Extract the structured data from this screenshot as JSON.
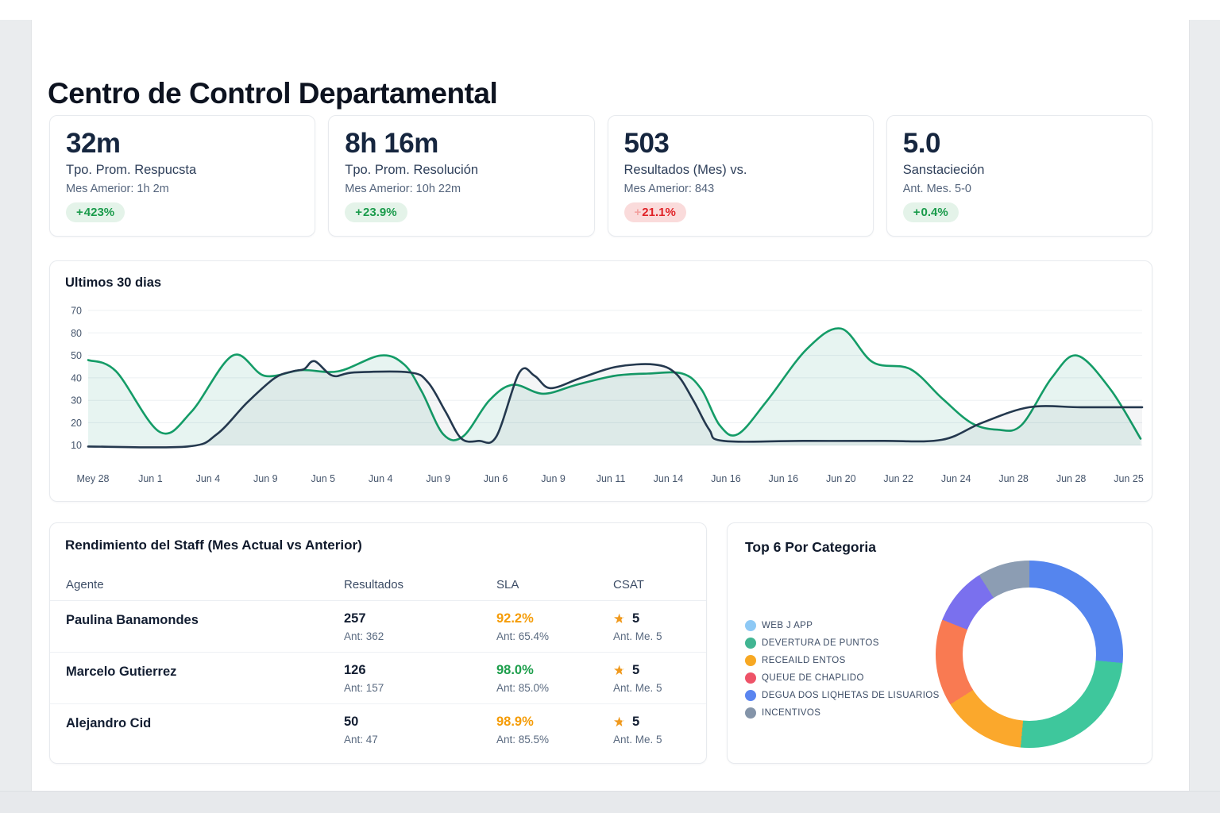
{
  "page": {
    "title": "Centro de Control Departamental"
  },
  "kpis": [
    {
      "value": "32m",
      "label": "Tpo. Prom. Respucsta",
      "sub": "Mes Amerior: 1h 2m",
      "badge_sign": "+",
      "badge_value": "423%",
      "badge_bg": "#E4F3E9",
      "badge_color": "#1A9B4B",
      "badge_sign_color": "#1A9B4B"
    },
    {
      "value": "8h 16m",
      "label": "Tpo. Prom. Resolución",
      "sub": "Mes Amerior: 10h 22m",
      "badge_sign": "+",
      "badge_value": "23.9%",
      "badge_bg": "#E4F3E9",
      "badge_color": "#1A9B4B",
      "badge_sign_color": "#1A9B4B"
    },
    {
      "value": "503",
      "label": "Resultados (Mes) vs.",
      "sub": "Mes Amerior: 843",
      "badge_sign": "+",
      "badge_value": "21.1%",
      "badge_bg": "#FADBDB",
      "badge_color": "#E02227",
      "badge_sign_color": "#F3A3A1"
    },
    {
      "value": "5.0",
      "label": "Sanstacieción",
      "sub": "Ant. Mes. 5-0",
      "badge_sign": "+",
      "badge_value": "0.4%",
      "badge_bg": "#E4F3E9",
      "badge_color": "#1A9B4B",
      "badge_sign_color": "#1A9B4B"
    }
  ],
  "chart_data": [
    {
      "type": "line",
      "title": "Ultimos 30 dias",
      "xlabel": "",
      "ylabel": "",
      "grid": true,
      "ylim": [
        10,
        70
      ],
      "y_tick_labels": [
        "70",
        "80",
        "50",
        "40",
        "30",
        "20",
        "10"
      ],
      "x_tick_labels": [
        "Mey 28",
        "Jun 1",
        "Jun 4",
        "Jun 9",
        "Jun 5",
        "Jun 4",
        "Jun 9",
        "Jun 6",
        "Jun 9",
        "Jun 11",
        "Jun 14",
        "Jun 16",
        "Jun 16",
        "Jun 20",
        "Jun 22",
        "Jun 24",
        "Jun 28",
        "Jun 28",
        "Jun 25"
      ],
      "series": [
        {
          "name": "serie-verde",
          "color": "#149C67",
          "area_fill": "rgba(22,150,118,0.10)",
          "points": [
            [
              0,
              48
            ],
            [
              35,
              43
            ],
            [
              90,
              16
            ],
            [
              130,
              25
            ],
            [
              182,
              50
            ],
            [
              222,
              41
            ],
            [
              268,
              43.5
            ],
            [
              315,
              43
            ],
            [
              368,
              50
            ],
            [
              398,
              46
            ],
            [
              420,
              34
            ],
            [
              447,
              15
            ],
            [
              472,
              14
            ],
            [
              505,
              30
            ],
            [
              535,
              37
            ],
            [
              573,
              33
            ],
            [
              615,
              37
            ],
            [
              663,
              41
            ],
            [
              705,
              42
            ],
            [
              748,
              42
            ],
            [
              772,
              35
            ],
            [
              795,
              19
            ],
            [
              818,
              15
            ],
            [
              855,
              30
            ],
            [
              905,
              53
            ],
            [
              948,
              62
            ],
            [
              988,
              47
            ],
            [
              1035,
              44
            ],
            [
              1075,
              31
            ],
            [
              1112,
              20
            ],
            [
              1145,
              17
            ],
            [
              1175,
              19
            ],
            [
              1213,
              40
            ],
            [
              1245,
              50
            ],
            [
              1287,
              35
            ],
            [
              1325,
              13
            ]
          ]
        },
        {
          "name": "serie-azul-oscuro",
          "color": "#24384E",
          "area_fill": "rgba(36,56,78,0.05)",
          "points": [
            [
              0,
              9.5
            ],
            [
              125,
              9.5
            ],
            [
              162,
              15
            ],
            [
              200,
              29
            ],
            [
              235,
              40
            ],
            [
              258,
              43
            ],
            [
              272,
              44
            ],
            [
              285,
              47.5
            ],
            [
              308,
              41
            ],
            [
              335,
              42.5
            ],
            [
              405,
              42.5
            ],
            [
              428,
              38
            ],
            [
              450,
              25
            ],
            [
              470,
              13
            ],
            [
              492,
              12
            ],
            [
              514,
              14
            ],
            [
              543,
              42.5
            ],
            [
              562,
              41
            ],
            [
              582,
              35.5
            ],
            [
              620,
              40
            ],
            [
              665,
              45
            ],
            [
              713,
              46
            ],
            [
              740,
              42
            ],
            [
              762,
              30
            ],
            [
              782,
              17
            ],
            [
              800,
              12
            ],
            [
              900,
              12
            ],
            [
              1000,
              12
            ],
            [
              1075,
              12.5
            ],
            [
              1125,
              20
            ],
            [
              1185,
              27
            ],
            [
              1250,
              27
            ],
            [
              1327,
              27
            ]
          ]
        }
      ]
    },
    {
      "type": "donut",
      "title": "Top 6 Por Categoria",
      "legend_position": "left",
      "legend": [
        {
          "label": "WEB J APP",
          "color": "#8EC9F5"
        },
        {
          "label": "DEVERTURA DE PUNTOS",
          "color": "#41B592"
        },
        {
          "label": "RECEAILD ENTOS",
          "color": "#F7A823"
        },
        {
          "label": "QUEUE DE CHAPLIDO",
          "color": "#EE5368"
        },
        {
          "label": "DEGUA DOS LIQHETAS DE LISUARIOS",
          "color": "#5A85F0"
        },
        {
          "label": "INCENTIVOS",
          "color": "#8494A9"
        }
      ],
      "segments": [
        {
          "name": "azul",
          "color": "#5585EE",
          "pct": 26.5
        },
        {
          "name": "verde",
          "color": "#3EC79C",
          "pct": 25
        },
        {
          "name": "ambar",
          "color": "#FBA82C",
          "pct": 14.5
        },
        {
          "name": "coral",
          "color": "#F97A52",
          "pct": 15
        },
        {
          "name": "morado",
          "color": "#7A70EE",
          "pct": 10
        },
        {
          "name": "gris",
          "color": "#8C9DB3",
          "pct": 9
        }
      ]
    }
  ],
  "staff": {
    "title": "Rendimiento del Staff (Mes Actual vs Anterior)",
    "columns": [
      "Agente",
      "Resultados",
      "SLA",
      "CSAT"
    ],
    "rows": [
      {
        "agent": "Paulina Banamondes",
        "resultados": "257",
        "resultados_ant": "Ant: 362",
        "sla": "92.2%",
        "sla_color": "#F59C07",
        "sla_ant": "Ant: 65.4%",
        "csat": "5",
        "csat_ant": "Ant. Me. 5"
      },
      {
        "agent": "Marcelo Gutierrez",
        "resultados": "126",
        "resultados_ant": "Ant: 157",
        "sla": "98.0%",
        "sla_color": "#1C9E4B",
        "sla_ant": "Ant: 85.0%",
        "csat": "5",
        "csat_ant": "Ant. Me. 5"
      },
      {
        "agent": "Alejandro Cid",
        "resultados": "50",
        "resultados_ant": "Ant: 47",
        "sla": "98.9%",
        "sla_color": "#F59C07",
        "sla_ant": "Ant: 85.5%",
        "csat": "5",
        "csat_ant": "Ant. Me. 5"
      }
    ]
  },
  "icons": {
    "star": "★"
  }
}
